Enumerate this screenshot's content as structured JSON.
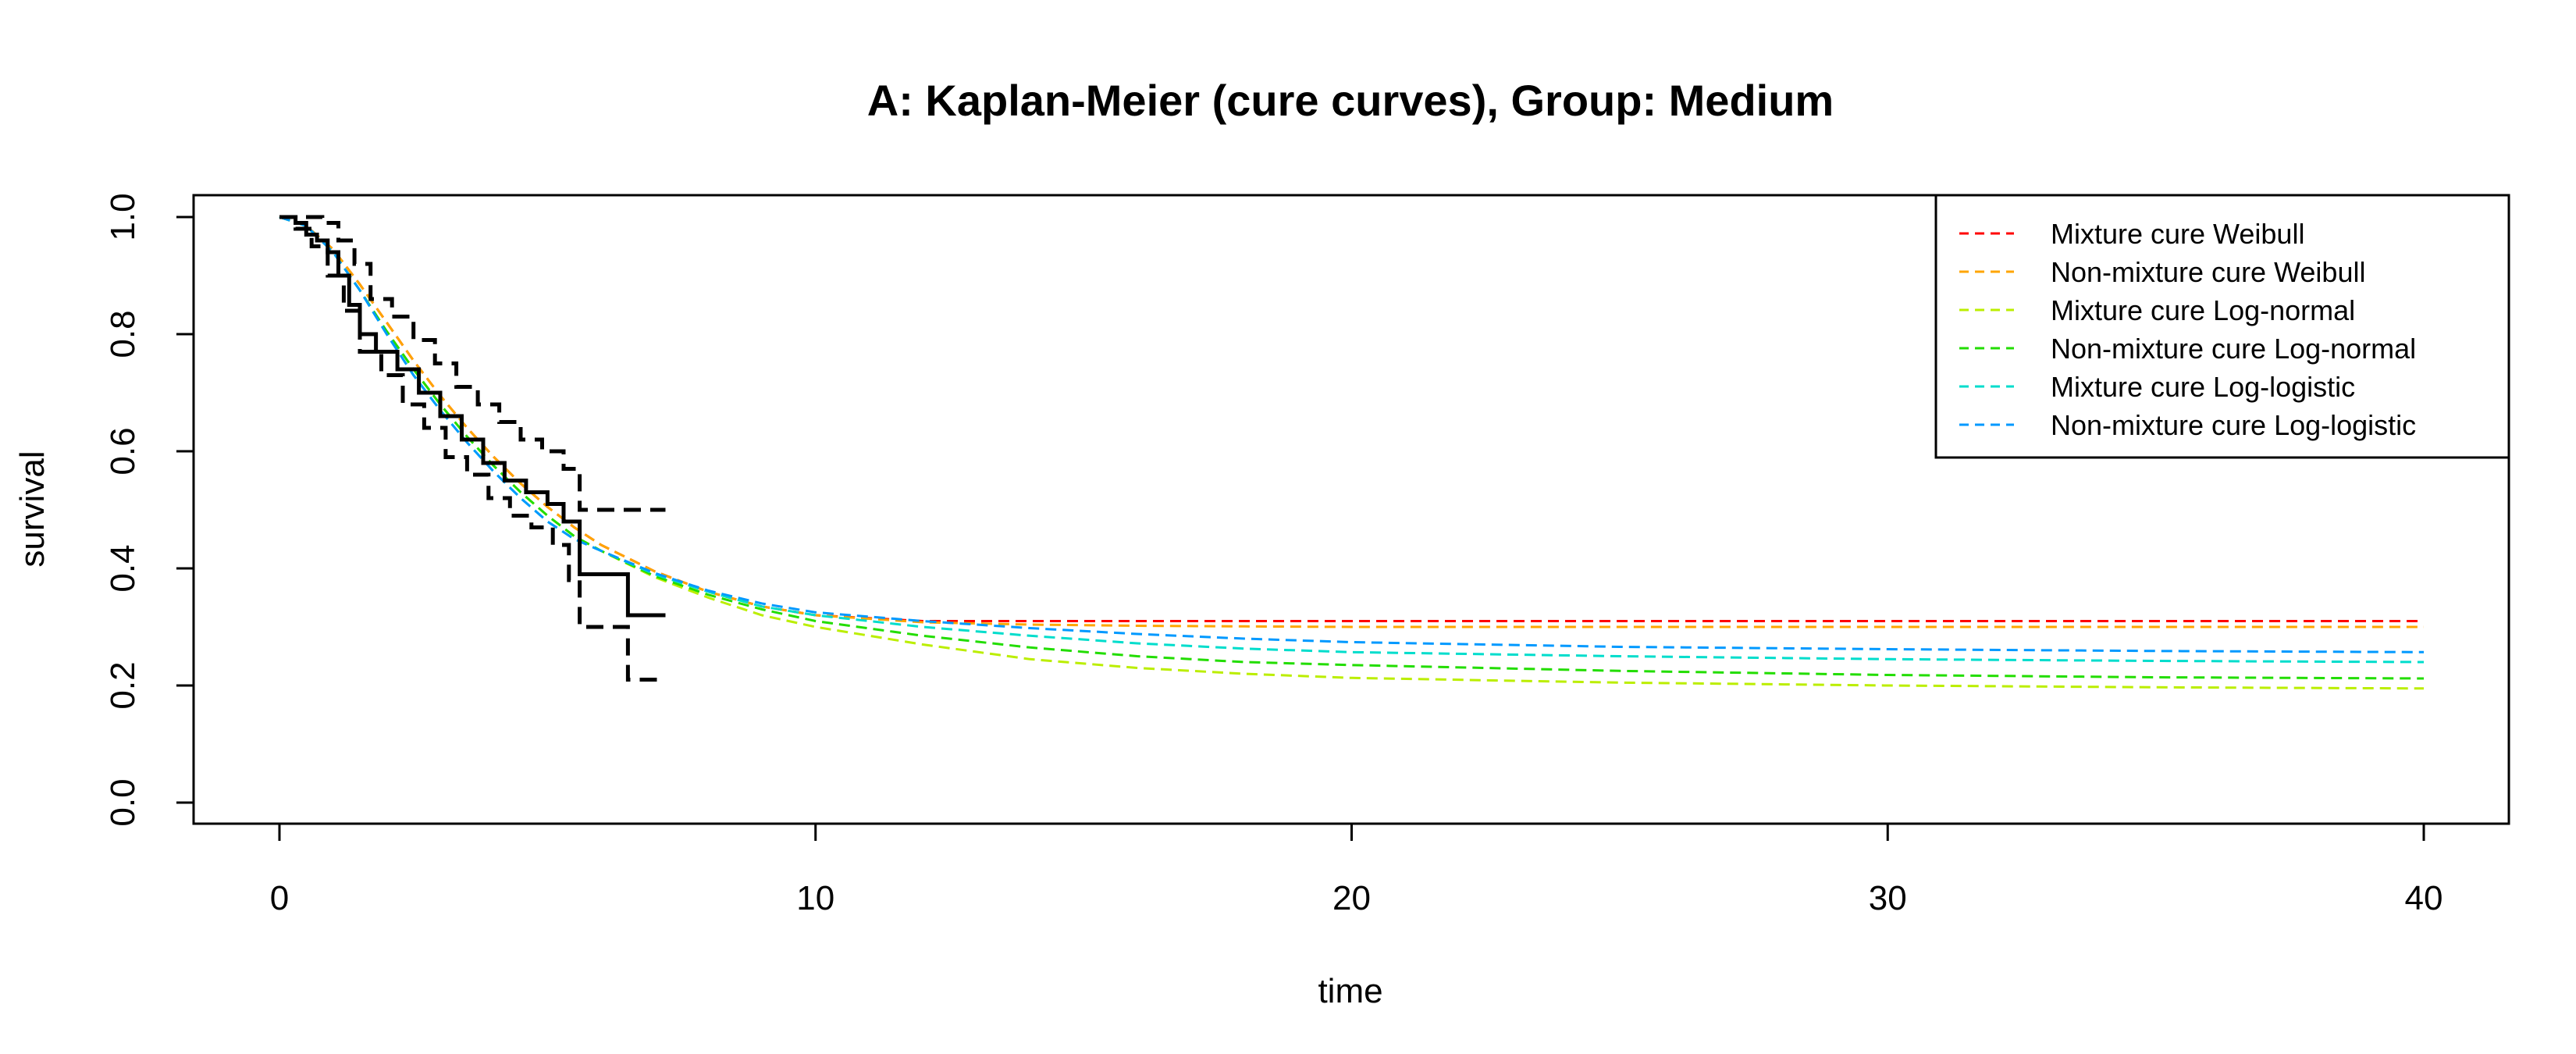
{
  "chart_data": {
    "type": "line",
    "title": "A: Kaplan-Meier (cure curves), Group: Medium",
    "xlabel": "time",
    "ylabel": "survival",
    "xlim": [
      0,
      40
    ],
    "ylim": [
      0,
      1
    ],
    "xticks": [
      0,
      10,
      20,
      30,
      40
    ],
    "yticks": [
      0.0,
      0.2,
      0.4,
      0.6,
      0.8,
      1.0
    ],
    "xtick_labels": [
      "0",
      "10",
      "20",
      "30",
      "40"
    ],
    "ytick_labels": [
      "0.0",
      "0.2",
      "0.4",
      "0.6",
      "0.8",
      "1.0"
    ],
    "grid": false,
    "legend_position": "top-right",
    "km": {
      "color": "#000000",
      "estimate": {
        "x": [
          0,
          0.3,
          0.5,
          0.7,
          0.9,
          1.1,
          1.3,
          1.5,
          1.8,
          2.2,
          2.6,
          3.0,
          3.4,
          3.8,
          4.2,
          4.6,
          5.0,
          5.3,
          5.6,
          6.5,
          7.2
        ],
        "y": [
          1.0,
          0.99,
          0.97,
          0.96,
          0.94,
          0.9,
          0.85,
          0.8,
          0.77,
          0.74,
          0.7,
          0.66,
          0.62,
          0.58,
          0.55,
          0.53,
          0.51,
          0.48,
          0.39,
          0.32,
          0.32
        ]
      },
      "upper": {
        "x": [
          0,
          0.5,
          0.8,
          1.1,
          1.4,
          1.7,
          2.1,
          2.5,
          2.9,
          3.3,
          3.7,
          4.1,
          4.5,
          4.9,
          5.3,
          5.6,
          6.5,
          7.2
        ],
        "y": [
          1.0,
          1.0,
          0.99,
          0.96,
          0.92,
          0.86,
          0.83,
          0.79,
          0.75,
          0.71,
          0.68,
          0.65,
          0.62,
          0.6,
          0.57,
          0.5,
          0.5,
          0.5
        ]
      },
      "lower": {
        "x": [
          0,
          0.3,
          0.6,
          0.9,
          1.2,
          1.5,
          1.9,
          2.3,
          2.7,
          3.1,
          3.5,
          3.9,
          4.3,
          4.7,
          5.1,
          5.4,
          5.6,
          6.5,
          7.2
        ],
        "y": [
          1.0,
          0.98,
          0.95,
          0.9,
          0.84,
          0.77,
          0.73,
          0.68,
          0.64,
          0.59,
          0.56,
          0.52,
          0.49,
          0.47,
          0.44,
          0.38,
          0.3,
          0.21,
          0.21
        ]
      }
    },
    "x": [
      0,
      0.5,
      1,
      1.5,
      2,
      2.5,
      3,
      3.5,
      4,
      4.5,
      5,
      5.5,
      6,
      7,
      8,
      9,
      10,
      12,
      14,
      16,
      18,
      20,
      25,
      30,
      35,
      40
    ],
    "series": [
      {
        "name": "Mixture cure Weibull",
        "color": "#ff0000",
        "values": [
          1.0,
          0.985,
          0.945,
          0.885,
          0.82,
          0.755,
          0.695,
          0.64,
          0.59,
          0.545,
          0.505,
          0.47,
          0.44,
          0.395,
          0.36,
          0.335,
          0.32,
          0.31,
          0.31,
          0.31,
          0.31,
          0.31,
          0.31,
          0.31,
          0.31,
          0.31
        ]
      },
      {
        "name": "Non-mixture cure Weibull",
        "color": "#ffa500",
        "values": [
          1.0,
          0.985,
          0.945,
          0.885,
          0.82,
          0.755,
          0.695,
          0.64,
          0.59,
          0.545,
          0.505,
          0.47,
          0.44,
          0.395,
          0.36,
          0.335,
          0.32,
          0.308,
          0.304,
          0.302,
          0.301,
          0.3,
          0.3,
          0.3,
          0.3,
          0.3
        ]
      },
      {
        "name": "Mixture cure Log-normal",
        "color": "#bbee00",
        "values": [
          1.0,
          0.985,
          0.94,
          0.875,
          0.805,
          0.74,
          0.68,
          0.625,
          0.575,
          0.53,
          0.49,
          0.455,
          0.43,
          0.385,
          0.35,
          0.32,
          0.3,
          0.27,
          0.245,
          0.23,
          0.22,
          0.213,
          0.205,
          0.2,
          0.197,
          0.195
        ]
      },
      {
        "name": "Non-mixture cure Log-normal",
        "color": "#22dd00",
        "values": [
          1.0,
          0.985,
          0.94,
          0.875,
          0.805,
          0.74,
          0.68,
          0.625,
          0.575,
          0.53,
          0.49,
          0.455,
          0.43,
          0.387,
          0.355,
          0.33,
          0.31,
          0.285,
          0.265,
          0.25,
          0.24,
          0.235,
          0.225,
          0.218,
          0.214,
          0.212
        ]
      },
      {
        "name": "Mixture cure Log-logistic",
        "color": "#00ddcc",
        "values": [
          1.0,
          0.985,
          0.94,
          0.875,
          0.8,
          0.73,
          0.67,
          0.615,
          0.565,
          0.52,
          0.48,
          0.45,
          0.43,
          0.39,
          0.36,
          0.335,
          0.32,
          0.3,
          0.285,
          0.272,
          0.263,
          0.257,
          0.25,
          0.245,
          0.242,
          0.24
        ]
      },
      {
        "name": "Non-mixture cure Log-logistic",
        "color": "#0099ff",
        "values": [
          1.0,
          0.985,
          0.94,
          0.875,
          0.8,
          0.73,
          0.67,
          0.615,
          0.565,
          0.52,
          0.48,
          0.45,
          0.43,
          0.392,
          0.362,
          0.34,
          0.325,
          0.31,
          0.298,
          0.288,
          0.28,
          0.274,
          0.266,
          0.262,
          0.259,
          0.257
        ]
      }
    ]
  }
}
